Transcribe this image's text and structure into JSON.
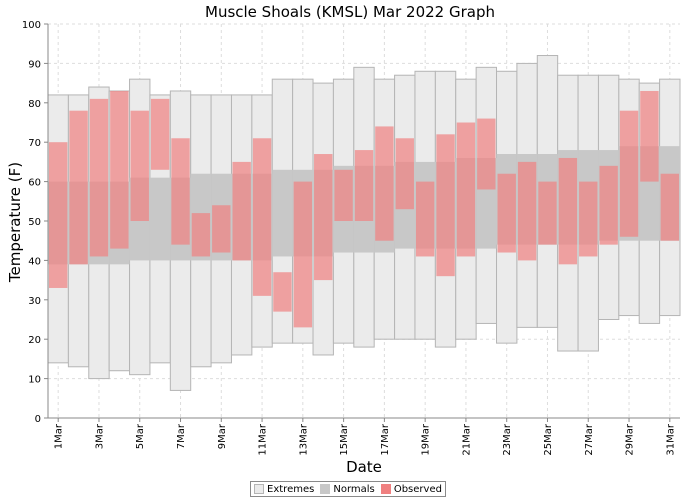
{
  "chart_data": {
    "type": "bar",
    "title": "Muscle Shoals (KMSL) Mar 2022 Graph",
    "xlabel": "Date",
    "ylabel": "Temperature (F)",
    "ylim": [
      0,
      100
    ],
    "yticks": [
      0,
      10,
      20,
      30,
      40,
      50,
      60,
      70,
      80,
      90,
      100
    ],
    "grid": true,
    "legend_position": "bottom",
    "categories": [
      "1 Mar",
      "2 Mar",
      "3 Mar",
      "4 Mar",
      "5 Mar",
      "6 Mar",
      "7 Mar",
      "8 Mar",
      "9 Mar",
      "10 Mar",
      "11 Mar",
      "12 Mar",
      "13 Mar",
      "14 Mar",
      "15 Mar",
      "16 Mar",
      "17 Mar",
      "18 Mar",
      "19 Mar",
      "20 Mar",
      "21 Mar",
      "22 Mar",
      "23 Mar",
      "24 Mar",
      "25 Mar",
      "26 Mar",
      "27 Mar",
      "28 Mar",
      "29 Mar",
      "30 Mar",
      "31 Mar"
    ],
    "x_tick_labels": [
      "1Mar",
      "3Mar",
      "5Mar",
      "7Mar",
      "9Mar",
      "11Mar",
      "13Mar",
      "15Mar",
      "17Mar",
      "19Mar",
      "21Mar",
      "23Mar",
      "25Mar",
      "27Mar",
      "29Mar",
      "31Mar"
    ],
    "series": [
      {
        "name": "Extremes",
        "low": [
          14,
          13,
          10,
          12,
          11,
          14,
          7,
          13,
          14,
          16,
          18,
          19,
          19,
          16,
          19,
          18,
          20,
          20,
          20,
          18,
          20,
          24,
          19,
          23,
          23,
          17,
          17,
          25,
          26,
          24,
          26
        ],
        "high": [
          82,
          82,
          84,
          83,
          86,
          82,
          83,
          82,
          82,
          82,
          82,
          86,
          86,
          85,
          86,
          89,
          86,
          87,
          88,
          88,
          86,
          89,
          88,
          90,
          92,
          87,
          87,
          87,
          86,
          85,
          86
        ]
      },
      {
        "name": "Normals",
        "low": [
          39,
          39,
          39,
          39,
          40,
          40,
          40,
          40,
          40,
          40,
          40,
          41,
          41,
          41,
          42,
          42,
          42,
          43,
          43,
          43,
          43,
          43,
          44,
          44,
          44,
          44,
          44,
          45,
          45,
          45,
          45
        ],
        "high": [
          60,
          60,
          60,
          60,
          61,
          61,
          61,
          62,
          62,
          62,
          62,
          63,
          63,
          63,
          64,
          64,
          64,
          65,
          65,
          65,
          66,
          66,
          67,
          67,
          67,
          68,
          68,
          68,
          69,
          69,
          69
        ]
      },
      {
        "name": "Observed",
        "low": [
          33,
          39,
          41,
          43,
          50,
          63,
          44,
          41,
          42,
          40,
          31,
          27,
          23,
          35,
          50,
          50,
          45,
          53,
          41,
          36,
          41,
          58,
          42,
          40,
          44,
          39,
          41,
          44,
          46,
          60,
          45
        ],
        "high": [
          70,
          78,
          81,
          83,
          78,
          81,
          71,
          52,
          54,
          65,
          71,
          37,
          60,
          67,
          63,
          68,
          74,
          71,
          60,
          72,
          75,
          76,
          62,
          65,
          60,
          66,
          60,
          64,
          78,
          83,
          62
        ]
      }
    ],
    "colors": {
      "extremes_fill": "#ebebeb",
      "extremes_stroke": "#b5b5b5",
      "normals_fill": "#c8c8c8",
      "observed_fill": "#f08080",
      "grid": "#dddddd"
    }
  }
}
